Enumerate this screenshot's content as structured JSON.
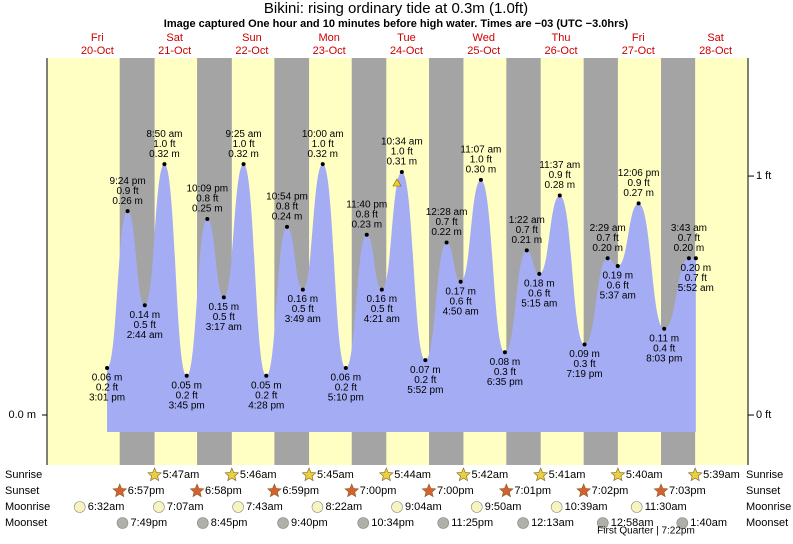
{
  "chart_data": {
    "type": "area",
    "title": "Bikini: rising  ordinary tide at 0.3m (1.0ft)",
    "subtitle": "Image captured One hour and 10 minutes before high water. Times are −03 (UTC −3.0hrs)",
    "days": [
      {
        "day": "Fri",
        "date": "20-Oct"
      },
      {
        "day": "Sat",
        "date": "21-Oct"
      },
      {
        "day": "Sun",
        "date": "22-Oct"
      },
      {
        "day": "Mon",
        "date": "23-Oct"
      },
      {
        "day": "Tue",
        "date": "24-Oct"
      },
      {
        "day": "Wed",
        "date": "25-Oct"
      },
      {
        "day": "Thu",
        "date": "26-Oct"
      },
      {
        "day": "Fri",
        "date": "27-Oct"
      },
      {
        "day": "Sat",
        "date": "28-Oct"
      }
    ],
    "categories": [
      "3:01 pm",
      "9:24 pm",
      "2:44 am",
      "8:50 am",
      "3:45 pm",
      "10:09 pm",
      "3:17 am",
      "9:25 am",
      "4:28 pm",
      "10:54 pm",
      "3:49 am",
      "10:00 am",
      "5:10 pm",
      "11:40 pm",
      "4:21 am",
      "10:34 am",
      "5:52 pm",
      "12:28 am",
      "4:50 am",
      "11:07 am",
      "6:35 pm",
      "1:22 am",
      "5:15 am",
      "11:37 am",
      "7:19 pm",
      "2:29 am",
      "5:37 am",
      "12:06 pm",
      "8:03 pm",
      "3:43 am",
      "5:52 am"
    ],
    "values": [
      0.06,
      0.26,
      0.14,
      0.32,
      0.05,
      0.25,
      0.15,
      0.32,
      0.05,
      0.24,
      0.16,
      0.32,
      0.06,
      0.23,
      0.16,
      0.31,
      0.07,
      0.22,
      0.17,
      0.3,
      0.08,
      0.21,
      0.18,
      0.28,
      0.09,
      0.2,
      0.19,
      0.27,
      0.11,
      0.2,
      0.2
    ],
    "value_labels": [
      "0.06 m",
      "0.26 m",
      "0.14 m",
      "0.32 m",
      "0.05 m",
      "0.25 m",
      "0.15 m",
      "0.32 m",
      "0.05 m",
      "0.24 m",
      "0.16 m",
      "0.32 m",
      "0.06 m",
      "0.23 m",
      "0.16 m",
      "0.31 m",
      "0.07 m",
      "0.22 m",
      "0.17 m",
      "0.30 m",
      "0.08 m",
      "0.21 m",
      "0.18 m",
      "0.28 m",
      "0.09 m",
      "0.20 m",
      "0.19 m",
      "0.27 m",
      "0.11 m",
      "0.20 m",
      "0.20 m"
    ],
    "values_ft": [
      0.2,
      0.9,
      0.5,
      1.0,
      0.2,
      0.8,
      0.5,
      1.0,
      0.2,
      0.8,
      0.5,
      1.0,
      0.2,
      0.8,
      0.5,
      1.0,
      0.2,
      0.7,
      0.6,
      1.0,
      0.3,
      0.7,
      0.6,
      0.9,
      0.3,
      0.7,
      0.6,
      0.9,
      0.4,
      0.7,
      0.7
    ],
    "value_labels_ft": [
      "0.2 ft",
      "0.9 ft",
      "0.5 ft",
      "1.0 ft",
      "0.2 ft",
      "0.8 ft",
      "0.5 ft",
      "1.0 ft",
      "0.2 ft",
      "0.8 ft",
      "0.5 ft",
      "1.0 ft",
      "0.2 ft",
      "0.8 ft",
      "0.5 ft",
      "1.0 ft",
      "0.2 ft",
      "0.7 ft",
      "0.6 ft",
      "1.0 ft",
      "0.3 ft",
      "0.7 ft",
      "0.6 ft",
      "0.9 ft",
      "0.3 ft",
      "0.7 ft",
      "0.6 ft",
      "0.9 ft",
      "0.4 ft",
      "0.7 ft",
      "0.7 ft"
    ],
    "color": "#a4acf4",
    "day_color": "#ffffc4",
    "night_color": "#a4a4a4",
    "ylim": [
      -0.0217,
      0.4554
    ],
    "yticks": [
      {
        "value": 0,
        "label": "0.0 m"
      }
    ],
    "y2lim": [
      -0.071,
      1.494
    ],
    "y2ticks": [
      {
        "value": 0,
        "label": "0 ft"
      },
      {
        "value": 1,
        "label": "1 ft"
      }
    ],
    "rows": [
      {
        "label": "Sunrise",
        "icon": "star",
        "color": "#e8d040",
        "times": [
          "5:47am",
          "5:46am",
          "5:45am",
          "5:44am",
          "5:42am",
          "5:41am",
          "5:40am",
          "5:39am"
        ]
      },
      {
        "label": "Sunset",
        "icon": "star",
        "color": "#d86030",
        "times": [
          "6:57pm",
          "6:58pm",
          "6:59pm",
          "7:00pm",
          "7:00pm",
          "7:01pm",
          "7:02pm",
          "7:03pm"
        ]
      },
      {
        "label": "Moonrise",
        "icon": "circle",
        "color": "#f8f4c0",
        "times": [
          "6:32am",
          "7:07am",
          "7:43am",
          "8:22am",
          "9:04am",
          "9:50am",
          "10:39am",
          "11:30am"
        ]
      },
      {
        "label": "Moonset",
        "icon": "circle",
        "color": "#b0b0a8",
        "times": [
          "7:49pm",
          "8:45pm",
          "9:40pm",
          "10:34pm",
          "11:25pm",
          "12:13am",
          "12:58am",
          "1:40am"
        ]
      }
    ],
    "moon_phase": "First Quarter | 7:22pm"
  }
}
